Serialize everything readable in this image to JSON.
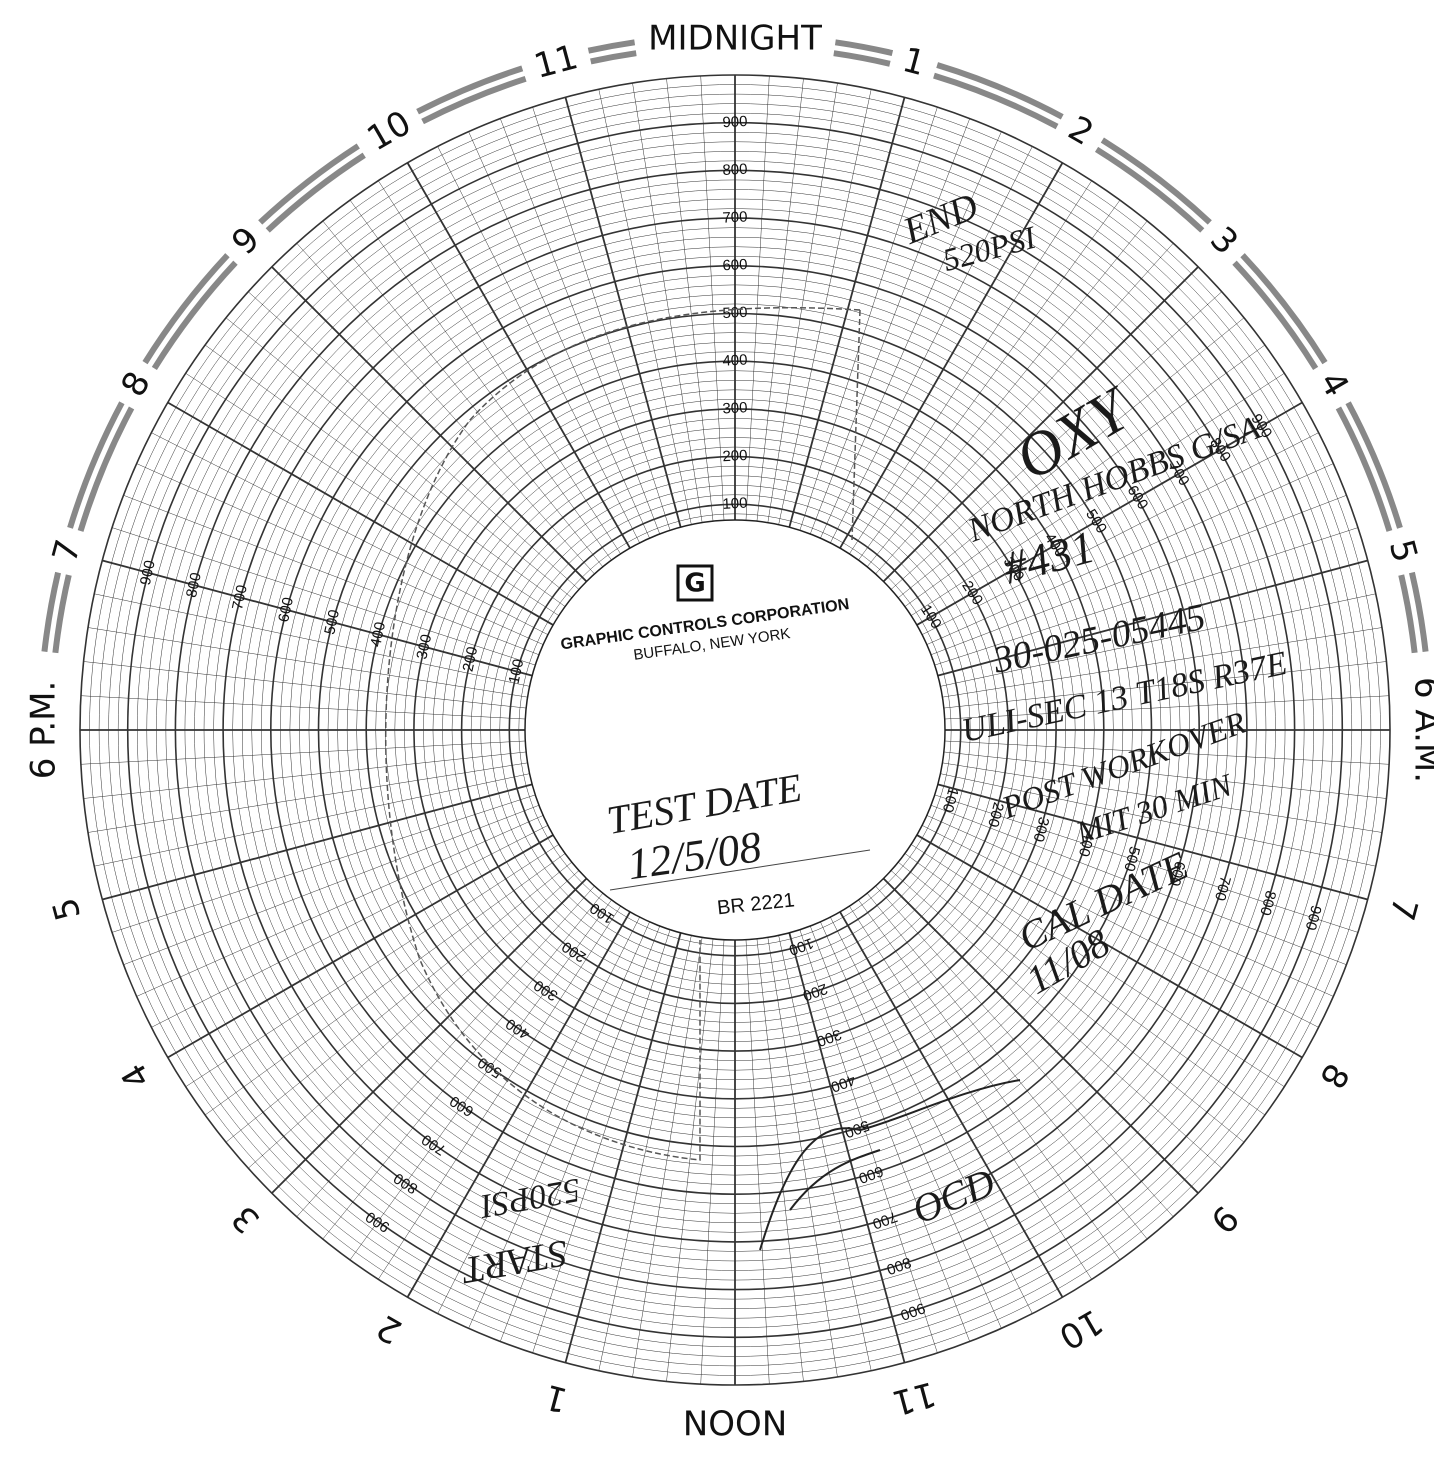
{
  "hours": [
    "MIDNIGHT",
    "1",
    "2",
    "3",
    "4",
    "5",
    "6 A.M.",
    "7",
    "8",
    "9",
    "10",
    "11",
    "NOON",
    "1",
    "2",
    "3",
    "4",
    "5",
    "6 P.M.",
    "7",
    "8",
    "9",
    "10",
    "11"
  ],
  "scale": [
    100,
    200,
    300,
    400,
    500,
    600,
    700,
    800,
    900
  ],
  "center": {
    "company": "GRAPHIC CONTROLS CORPORATION",
    "location": "BUFFALO, NEW YORK",
    "chart_number": "BR 2221"
  },
  "notes": {
    "end": "END",
    "end_pressure": "520PSI",
    "operator": "OXY",
    "lease": "NORTH HOBBS G/SA",
    "well": "#431",
    "api": "30-025-05445",
    "legal": "ULI-SEC 13 T18S R37E",
    "purpose": "POST WORKOVER",
    "test": "MIT 30 MIN",
    "test_date_label": "TEST DATE",
    "test_date": "12/5/08",
    "cal_date_label": "CAL DATE",
    "cal_date": "11/08",
    "start": "START",
    "start_pressure": "520PSI",
    "witness": "OCD"
  }
}
